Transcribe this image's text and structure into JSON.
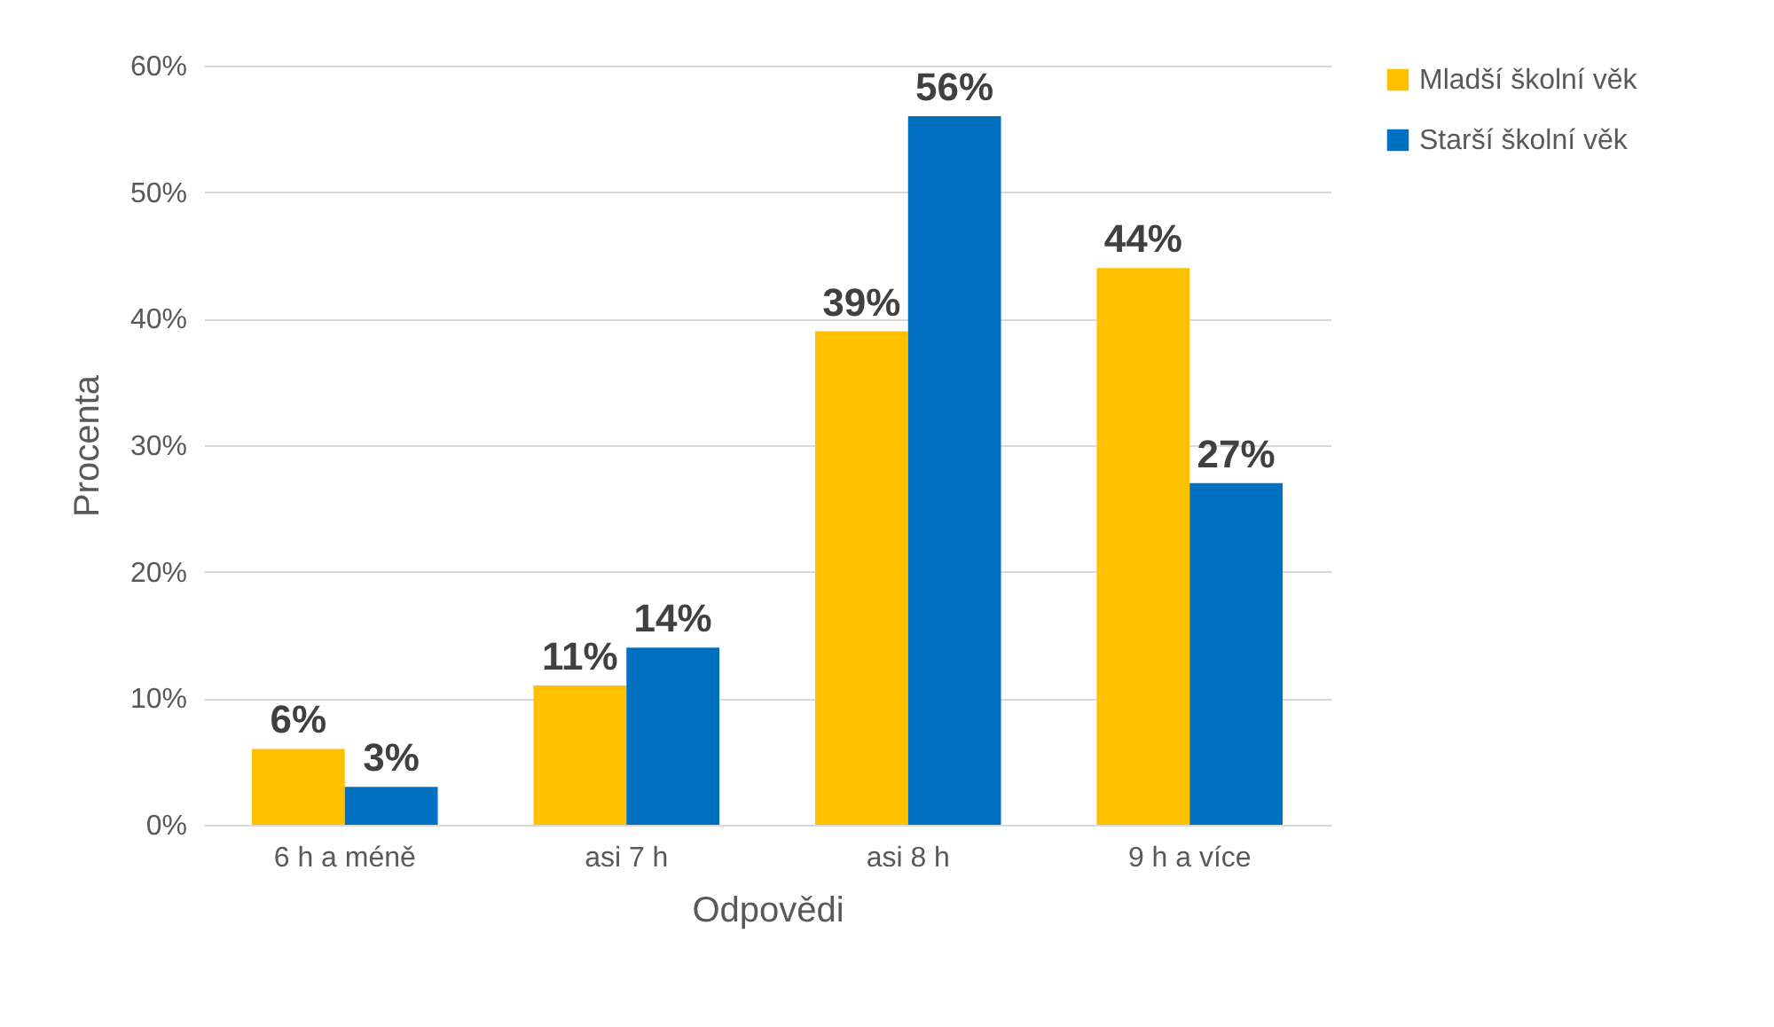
{
  "chart_data": {
    "type": "bar",
    "xlabel": "Odpovědi",
    "ylabel": "Procenta",
    "categories": [
      "6 h a méně",
      "asi 7 h",
      "asi 8 h",
      "9 h a více"
    ],
    "series": [
      {
        "name": "Mladší školní věk",
        "color": "#ffc000",
        "values": [
          6,
          11,
          39,
          44
        ],
        "value_labels": [
          "6%",
          "11%",
          "39%",
          "44%"
        ]
      },
      {
        "name": "Starší školní věk",
        "color": "#0070c0",
        "values": [
          3,
          14,
          56,
          27
        ],
        "value_labels": [
          "3%",
          "14%",
          "56%",
          "27%"
        ]
      }
    ],
    "ylim": [
      0,
      60
    ],
    "yticks": [
      {
        "value": 0,
        "label": "0%"
      },
      {
        "value": 10,
        "label": "10%"
      },
      {
        "value": 20,
        "label": "20%"
      },
      {
        "value": 30,
        "label": "30%"
      },
      {
        "value": 40,
        "label": "40%"
      },
      {
        "value": 50,
        "label": "50%"
      },
      {
        "value": 60,
        "label": "60%"
      }
    ],
    "grid": "y",
    "legend": "right"
  }
}
